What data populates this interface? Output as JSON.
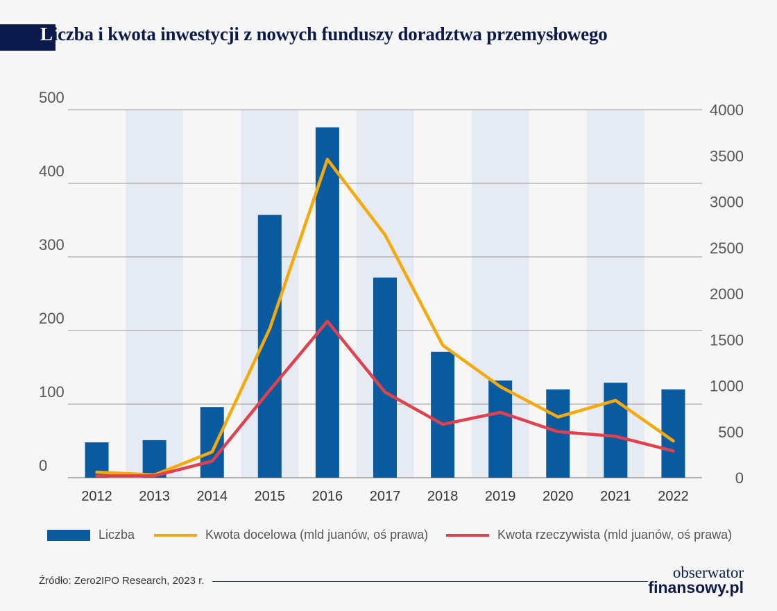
{
  "title_first": "L",
  "title_rest": "iczba i kwota inwestycji z nowych funduszy doradztwa przemysłowego",
  "source": "Źródło: Zero2IPO Research, 2023 r.",
  "logo": {
    "line1": "obserwator",
    "line2": "finansowy.pl"
  },
  "colors": {
    "bar": "#0a5aa0",
    "target": "#f6a90a",
    "actual": "#e0414e",
    "band": "#e6eaf2",
    "grid": "#9a9a9a",
    "axis": "#555555"
  },
  "legend": {
    "bar": "Liczba",
    "target": "Kwota docelowa (mld juanów, oś prawa)",
    "actual": "Kwota rzeczywista (mld juanów, oś prawa)"
  },
  "chart_data": {
    "type": "bar",
    "categories": [
      "2012",
      "2013",
      "2014",
      "2015",
      "2016",
      "2017",
      "2018",
      "2019",
      "2020",
      "2021",
      "2022"
    ],
    "left_ticks": [
      0,
      100,
      200,
      300,
      400,
      500
    ],
    "right_ticks": [
      0,
      500,
      1000,
      1500,
      2000,
      2500,
      3000,
      3500,
      4000
    ],
    "ylim_left": [
      0,
      500
    ],
    "ylim_right": [
      0,
      4000
    ],
    "shaded_categories": [
      "2013",
      "2015",
      "2017",
      "2019",
      "2021"
    ],
    "grid": true,
    "legend_position": "bottom",
    "series": [
      {
        "name": "Liczba",
        "type": "bar",
        "axis": "left",
        "values": [
          48,
          51,
          96,
          357,
          476,
          272,
          171,
          132,
          120,
          129,
          120
        ]
      },
      {
        "name": "Kwota docelowa (mld juanów, oś prawa)",
        "type": "line",
        "axis": "right",
        "values": [
          60,
          30,
          280,
          1620,
          3460,
          2640,
          1440,
          990,
          660,
          840,
          400
        ]
      },
      {
        "name": "Kwota rzeczywista (mld juanów, oś prawa)",
        "type": "line",
        "axis": "right",
        "values": [
          20,
          20,
          180,
          950,
          1700,
          930,
          580,
          710,
          500,
          450,
          290
        ]
      }
    ]
  }
}
